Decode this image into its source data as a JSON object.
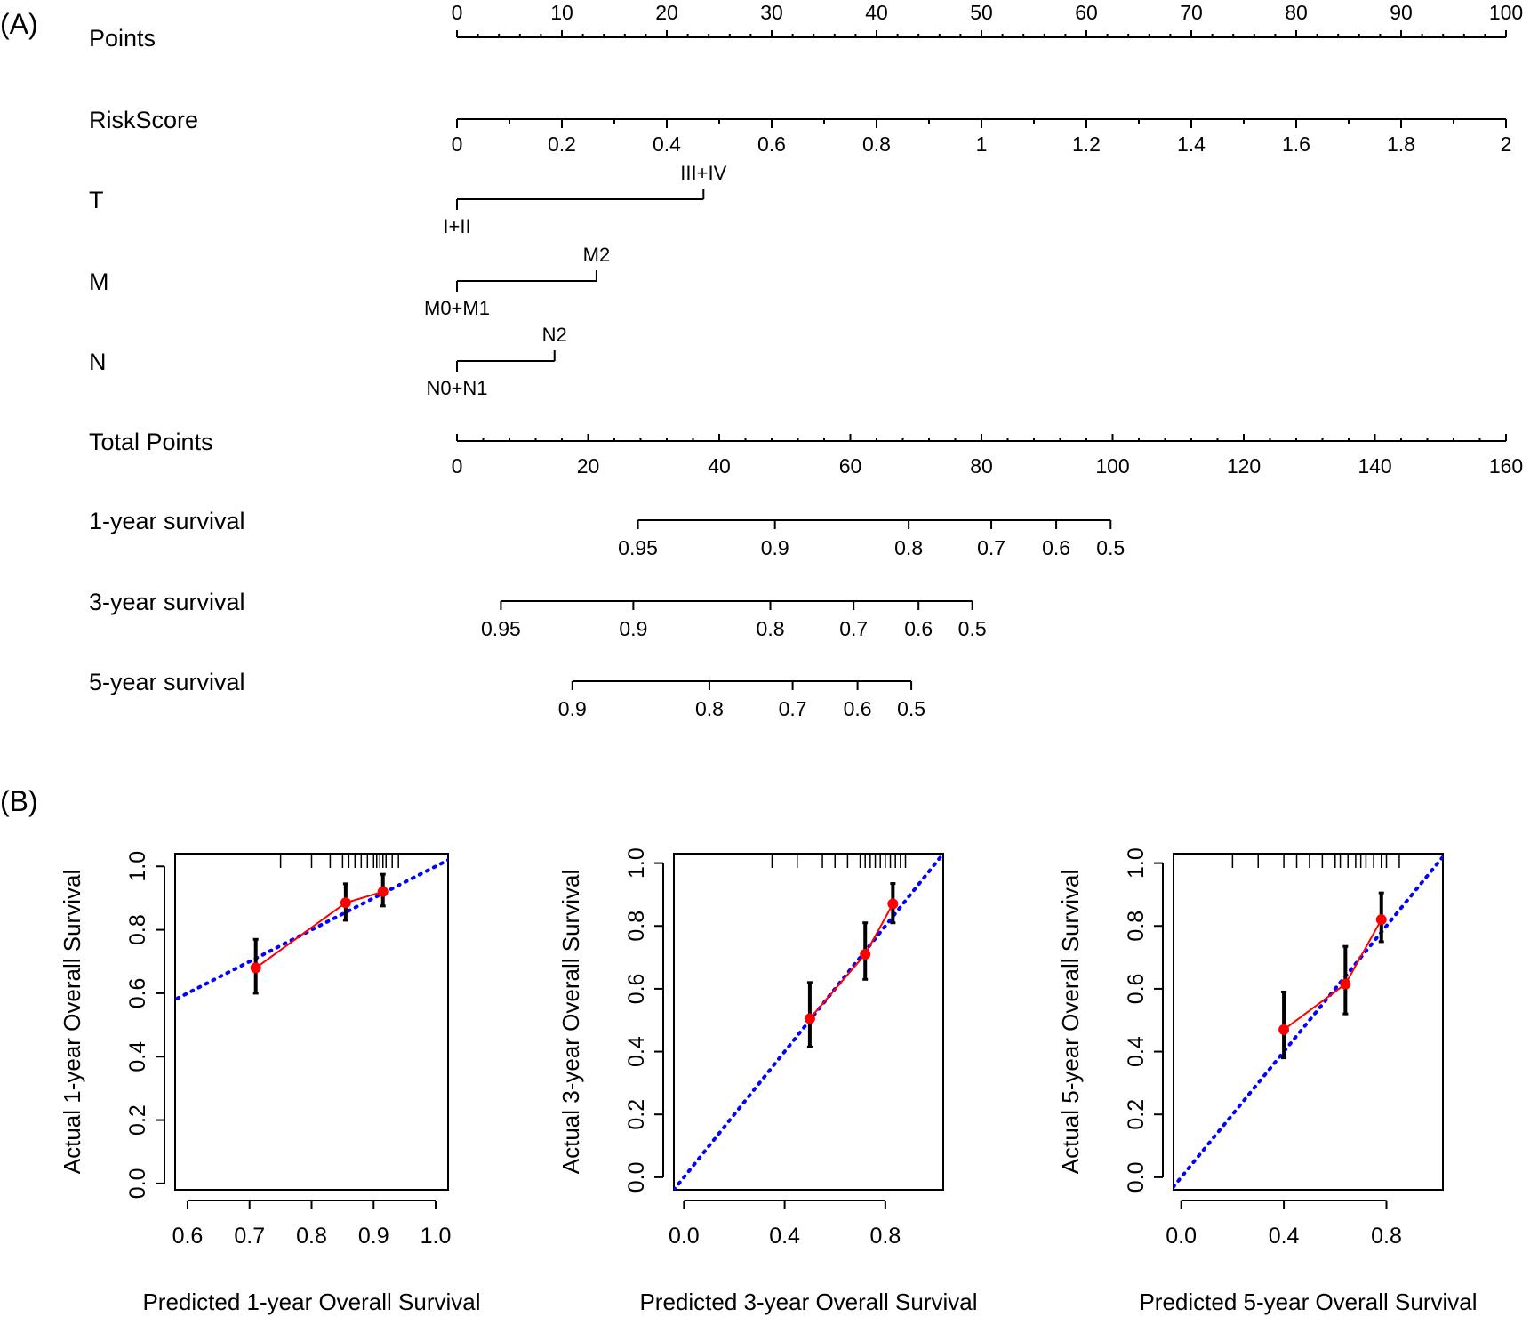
{
  "panels": {
    "a_label": "(A)",
    "b_label": "(B)"
  },
  "colors": {
    "ink": "#000000",
    "observed": "#ff0000",
    "ideal": "#0000ff"
  },
  "chart_data": [
    {
      "type": "nomogram",
      "rows": [
        {
          "label": "Points",
          "kind": "points_scale",
          "min": 0,
          "max": 100,
          "ticks": [
            0,
            10,
            20,
            30,
            40,
            50,
            60,
            70,
            80,
            90,
            100
          ]
        },
        {
          "label": "RiskScore",
          "kind": "continuous",
          "min": 0,
          "max": 2,
          "ticks": [
            {
              "value": "0",
              "points": 0
            },
            {
              "value": "0.2",
              "points": 10
            },
            {
              "value": "0.4",
              "points": 20
            },
            {
              "value": "0.6",
              "points": 30
            },
            {
              "value": "0.8",
              "points": 40
            },
            {
              "value": "1",
              "points": 50
            },
            {
              "value": "1.2",
              "points": 60
            },
            {
              "value": "1.4",
              "points": 70
            },
            {
              "value": "1.6",
              "points": 80
            },
            {
              "value": "1.8",
              "points": 90
            },
            {
              "value": "2",
              "points": 100
            }
          ]
        },
        {
          "label": "T",
          "kind": "categorical",
          "levels": [
            {
              "value": "I+II",
              "points": 0
            },
            {
              "value": "III+IV",
              "points": 23.5
            }
          ]
        },
        {
          "label": "M",
          "kind": "categorical",
          "levels": [
            {
              "value": "M0+M1",
              "points": 0
            },
            {
              "value": "M2",
              "points": 13.3
            }
          ]
        },
        {
          "label": "N",
          "kind": "categorical",
          "levels": [
            {
              "value": "N0+N1",
              "points": 0
            },
            {
              "value": "N2",
              "points": 9.3
            }
          ]
        },
        {
          "label": "Total Points",
          "kind": "total_scale",
          "min": 0,
          "max": 160,
          "ticks": [
            0,
            20,
            40,
            60,
            80,
            100,
            120,
            140,
            160
          ]
        },
        {
          "label": "1-year survival",
          "kind": "probability",
          "ticks": [
            {
              "value": "0.95",
              "total_points": 27.6
            },
            {
              "value": "0.9",
              "total_points": 48.5
            },
            {
              "value": "0.8",
              "total_points": 68.9
            },
            {
              "value": "0.7",
              "total_points": 81.5
            },
            {
              "value": "0.6",
              "total_points": 91.4
            },
            {
              "value": "0.5",
              "total_points": 99.7
            }
          ]
        },
        {
          "label": "3-year survival",
          "kind": "probability",
          "ticks": [
            {
              "value": "0.95",
              "total_points": 6.7
            },
            {
              "value": "0.9",
              "total_points": 26.9
            },
            {
              "value": "0.8",
              "total_points": 47.8
            },
            {
              "value": "0.7",
              "total_points": 60.5
            },
            {
              "value": "0.6",
              "total_points": 70.4
            },
            {
              "value": "0.5",
              "total_points": 78.6
            }
          ]
        },
        {
          "label": "5-year survival",
          "kind": "probability",
          "ticks": [
            {
              "value": "0.9",
              "total_points": 17.6
            },
            {
              "value": "0.8",
              "total_points": 38.5
            },
            {
              "value": "0.7",
              "total_points": 51.2
            },
            {
              "value": "0.6",
              "total_points": 61.1
            },
            {
              "value": "0.5",
              "total_points": 69.3
            }
          ]
        }
      ]
    },
    {
      "type": "calibration",
      "xlabel": "Predicted 1-year Overall Survival",
      "ylabel": "Actual 1-year Overall Survival",
      "xlim": [
        0.58,
        1.02
      ],
      "ylim": [
        -0.02,
        1.04
      ],
      "xticks": [
        "0.6",
        "0.7",
        "0.8",
        "0.9",
        "1.0"
      ],
      "yticks": [
        "0.0",
        "0.2",
        "0.4",
        "0.6",
        "0.8",
        "1.0"
      ],
      "observed": [
        {
          "x": 0.71,
          "y": 0.68,
          "lo": 0.6,
          "hi": 0.77
        },
        {
          "x": 0.855,
          "y": 0.885,
          "lo": 0.83,
          "hi": 0.945
        },
        {
          "x": 0.915,
          "y": 0.92,
          "lo": 0.875,
          "hi": 0.975
        }
      ],
      "rug": [
        0.75,
        0.8,
        0.83,
        0.85,
        0.86,
        0.87,
        0.88,
        0.89,
        0.9,
        0.905,
        0.91,
        0.915,
        0.92,
        0.93,
        0.94
      ]
    },
    {
      "type": "calibration",
      "xlabel": "Predicted 3-year Overall Survival",
      "ylabel": "Actual 3-year Overall Survival",
      "xlim": [
        -0.04,
        1.03
      ],
      "ylim": [
        -0.04,
        1.03
      ],
      "xticks": [
        "0.0",
        "0.4",
        "0.8"
      ],
      "yticks": [
        "0.0",
        "0.2",
        "0.4",
        "0.6",
        "0.8",
        "1.0"
      ],
      "observed": [
        {
          "x": 0.5,
          "y": 0.505,
          "lo": 0.415,
          "hi": 0.62
        },
        {
          "x": 0.72,
          "y": 0.71,
          "lo": 0.63,
          "hi": 0.81
        },
        {
          "x": 0.83,
          "y": 0.87,
          "lo": 0.81,
          "hi": 0.935
        }
      ],
      "rug": [
        0.35,
        0.45,
        0.55,
        0.6,
        0.65,
        0.7,
        0.72,
        0.74,
        0.76,
        0.78,
        0.8,
        0.82,
        0.84,
        0.86,
        0.88
      ]
    },
    {
      "type": "calibration",
      "xlabel": "Predicted 5-year Overall Survival",
      "ylabel": "Actual 5-year Overall Survival",
      "xlim": [
        -0.03,
        1.02
      ],
      "ylim": [
        -0.04,
        1.03
      ],
      "xticks": [
        "0.0",
        "0.4",
        "0.8"
      ],
      "yticks": [
        "0.0",
        "0.2",
        "0.4",
        "0.6",
        "0.8",
        "1.0"
      ],
      "observed": [
        {
          "x": 0.4,
          "y": 0.47,
          "lo": 0.38,
          "hi": 0.59
        },
        {
          "x": 0.64,
          "y": 0.615,
          "lo": 0.52,
          "hi": 0.735
        },
        {
          "x": 0.78,
          "y": 0.82,
          "lo": 0.75,
          "hi": 0.905
        }
      ],
      "rug": [
        0.2,
        0.3,
        0.4,
        0.45,
        0.5,
        0.55,
        0.6,
        0.62,
        0.65,
        0.68,
        0.7,
        0.72,
        0.75,
        0.78,
        0.8,
        0.85
      ]
    }
  ]
}
